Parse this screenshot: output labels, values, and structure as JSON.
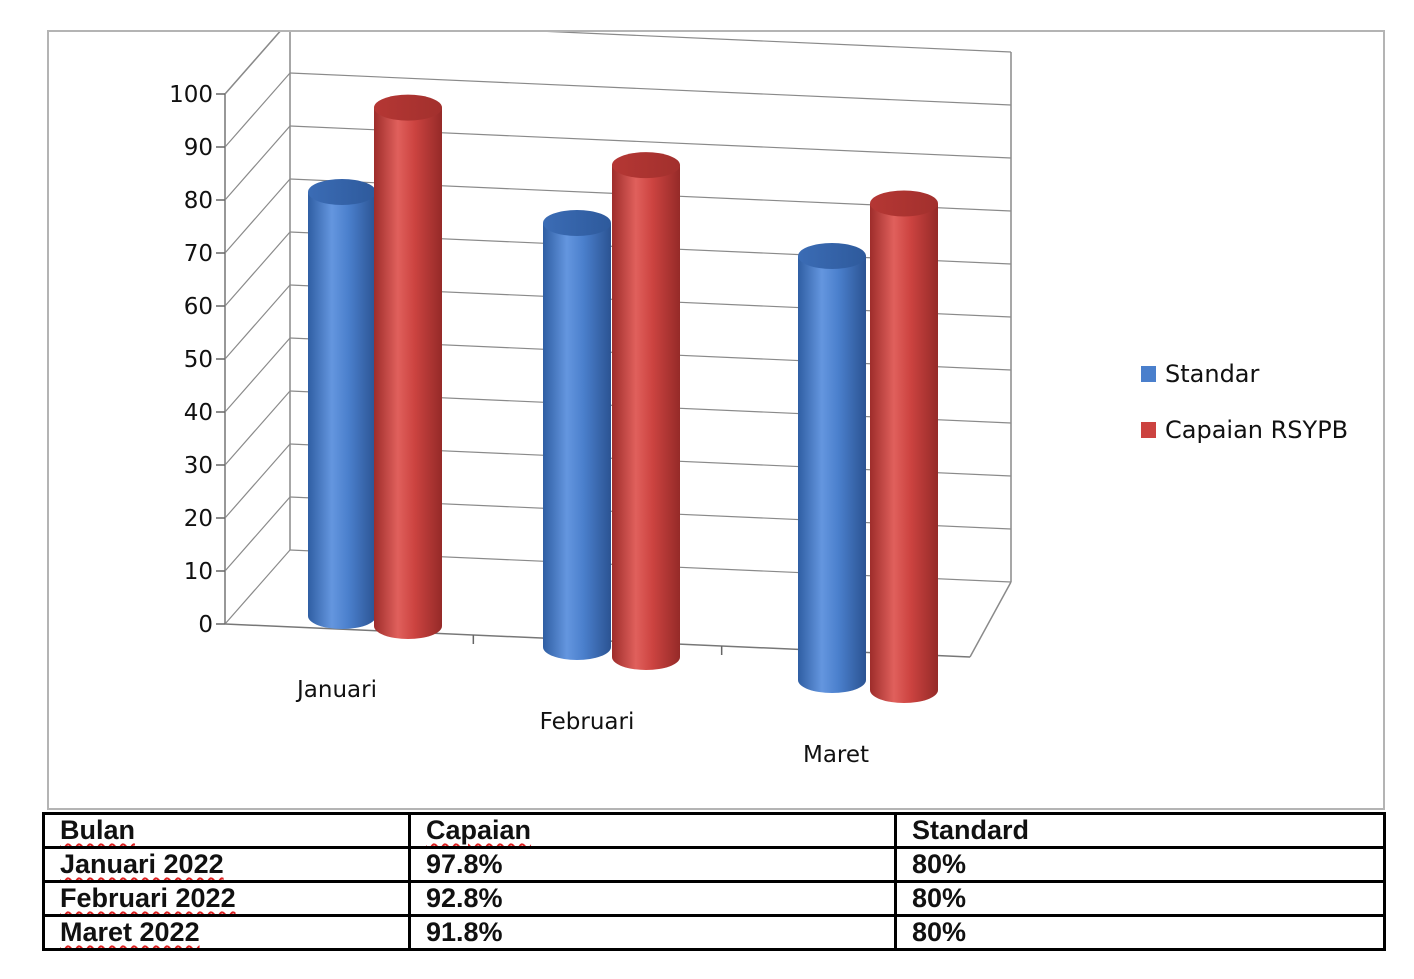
{
  "chart_data": {
    "type": "bar",
    "categories": [
      "Januari",
      "Februari",
      "Maret"
    ],
    "series": [
      {
        "name": "Standar",
        "values": [
          80,
          80,
          80
        ],
        "color": "#4a7fcc"
      },
      {
        "name": "Capaian RSYPB",
        "values": [
          97.8,
          92.8,
          91.8
        ],
        "color": "#cc4340"
      }
    ],
    "yticks": [
      "0",
      "10",
      "20",
      "30",
      "40",
      "50",
      "60",
      "70",
      "80",
      "90",
      "100"
    ],
    "ylim": [
      0,
      100
    ],
    "grid": true,
    "legend_position": "right",
    "style": "3d-cylinder"
  },
  "table": {
    "headers": [
      "Bulan",
      "Capaian",
      "Standard"
    ],
    "rows": [
      [
        "Januari 2022",
        "97.8%",
        "80%"
      ],
      [
        "Februari 2022",
        "92.8%",
        "80%"
      ],
      [
        "Maret 2022",
        "91.8%",
        "80%"
      ]
    ]
  }
}
